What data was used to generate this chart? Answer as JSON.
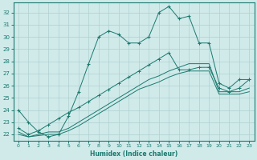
{
  "xlabel": "Humidex (Indice chaleur)",
  "bg_color": "#d0eaea",
  "grid_color": "#b0d0d0",
  "line_color": "#1a7a6e",
  "xlim": [
    -0.5,
    23.5
  ],
  "ylim": [
    21.5,
    32.8
  ],
  "xticks": [
    0,
    1,
    2,
    3,
    4,
    5,
    6,
    7,
    8,
    9,
    10,
    11,
    12,
    13,
    14,
    15,
    16,
    17,
    18,
    19,
    20,
    21,
    22,
    23
  ],
  "yticks": [
    22,
    23,
    24,
    25,
    26,
    27,
    28,
    29,
    30,
    31,
    32
  ],
  "series": {
    "line1_x": [
      0,
      1,
      2,
      3,
      4,
      5,
      6,
      7,
      8,
      9,
      10,
      11,
      12,
      13,
      14,
      15,
      16,
      17,
      18,
      19,
      20,
      21,
      22,
      23
    ],
    "line1_y": [
      24.0,
      23.0,
      22.2,
      21.8,
      22.0,
      23.5,
      25.5,
      27.8,
      30.0,
      30.5,
      30.2,
      29.5,
      29.5,
      30.0,
      32.0,
      32.5,
      31.5,
      31.7,
      29.5,
      29.5,
      26.2,
      25.8,
      26.5,
      26.5
    ],
    "line2_x": [
      0,
      1,
      2,
      3,
      4,
      5,
      6,
      7,
      8,
      9,
      10,
      11,
      12,
      13,
      14,
      15,
      16,
      17,
      18,
      19,
      20,
      21,
      22,
      23
    ],
    "line2_y": [
      22.5,
      22.0,
      22.3,
      22.8,
      23.3,
      23.8,
      24.2,
      24.7,
      25.2,
      25.7,
      26.2,
      26.7,
      27.2,
      27.7,
      28.2,
      28.7,
      27.3,
      27.3,
      27.5,
      27.5,
      25.8,
      25.5,
      25.8,
      26.5
    ],
    "line3_x": [
      0,
      1,
      2,
      3,
      4,
      5,
      6,
      7,
      8,
      9,
      10,
      11,
      12,
      13,
      14,
      15,
      16,
      17,
      18,
      19,
      20,
      21,
      22,
      23
    ],
    "line3_y": [
      22.2,
      21.8,
      22.0,
      22.2,
      22.2,
      22.5,
      23.0,
      23.5,
      24.0,
      24.5,
      25.0,
      25.5,
      26.0,
      26.5,
      26.8,
      27.2,
      27.5,
      27.8,
      27.8,
      27.8,
      25.5,
      25.5,
      25.5,
      25.8
    ],
    "line4_x": [
      0,
      1,
      2,
      3,
      4,
      5,
      6,
      7,
      8,
      9,
      10,
      11,
      12,
      13,
      14,
      15,
      16,
      17,
      18,
      19,
      20,
      21,
      22,
      23
    ],
    "line4_y": [
      22.0,
      21.8,
      21.9,
      22.0,
      22.0,
      22.3,
      22.7,
      23.2,
      23.7,
      24.2,
      24.7,
      25.2,
      25.7,
      26.0,
      26.3,
      26.7,
      27.0,
      27.2,
      27.2,
      27.2,
      25.3,
      25.3,
      25.3,
      25.5
    ]
  }
}
